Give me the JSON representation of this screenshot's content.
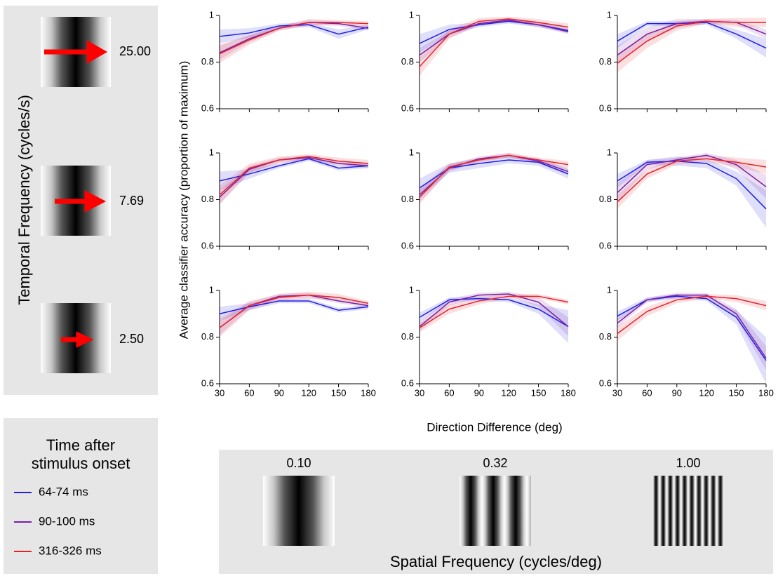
{
  "figure": {
    "y_label": "Average classifier accuracy  (proportion of maximum)",
    "x_label": "Direction Difference (deg)",
    "legend_title": [
      "Time after",
      "stimulus onset"
    ],
    "temporal_frequency": {
      "label": "Temporal Frequency (cycles/s)",
      "values": [
        "25.00",
        "7.69",
        "2.50"
      ]
    },
    "spatial_frequency": {
      "label": "Spatial Frequency (cycles/deg)",
      "values": [
        "0.10",
        "0.32",
        "1.00"
      ]
    }
  },
  "chart_data": [
    {
      "type": "line",
      "x": [
        30,
        60,
        90,
        120,
        150,
        180
      ],
      "xlim": [
        30,
        180
      ],
      "ylim": [
        0.6,
        1
      ],
      "xticks": [
        30,
        60,
        90,
        120,
        150,
        180
      ],
      "yticks": [
        0.6,
        0.8,
        1
      ],
      "xtick_labels": false,
      "series": [
        {
          "name": "64-74 ms",
          "color": "#1f1fe6",
          "values": [
            0.91,
            0.925,
            0.955,
            0.96,
            0.92,
            0.95
          ],
          "errors": [
            0.03,
            0.02,
            0.01,
            0.01,
            0.02,
            0.01
          ]
        },
        {
          "name": "90-100 ms",
          "color": "#7b1fa0",
          "values": [
            0.84,
            0.9,
            0.945,
            0.97,
            0.965,
            0.945
          ],
          "errors": [
            0.03,
            0.015,
            0.01,
            0.01,
            0.01,
            0.01
          ]
        },
        {
          "name": "316-326 ms",
          "color": "#e8202a",
          "values": [
            0.835,
            0.895,
            0.945,
            0.97,
            0.97,
            0.965
          ],
          "errors": [
            0.04,
            0.02,
            0.01,
            0.015,
            0.01,
            0.01
          ]
        }
      ]
    },
    {
      "type": "line",
      "x": [
        30,
        60,
        90,
        120,
        150,
        180
      ],
      "xlim": [
        30,
        180
      ],
      "ylim": [
        0.6,
        1
      ],
      "xticks": [
        30,
        60,
        90,
        120,
        150,
        180
      ],
      "yticks": [
        0.6,
        0.8,
        1
      ],
      "xtick_labels": false,
      "series": [
        {
          "color": "#1f1fe6",
          "values": [
            0.88,
            0.94,
            0.96,
            0.975,
            0.96,
            0.935
          ],
          "errors": [
            0.04,
            0.02,
            0.01,
            0.01,
            0.01,
            0.01
          ]
        },
        {
          "color": "#7b1fa0",
          "values": [
            0.83,
            0.92,
            0.965,
            0.98,
            0.96,
            0.93
          ],
          "errors": [
            0.03,
            0.015,
            0.01,
            0.01,
            0.01,
            0.01
          ]
        },
        {
          "color": "#e8202a",
          "values": [
            0.78,
            0.92,
            0.975,
            0.985,
            0.97,
            0.95
          ],
          "errors": [
            0.04,
            0.02,
            0.015,
            0.01,
            0.015,
            0.015
          ]
        }
      ]
    },
    {
      "type": "line",
      "x": [
        30,
        60,
        90,
        120,
        150,
        180
      ],
      "xlim": [
        30,
        180
      ],
      "ylim": [
        0.6,
        1
      ],
      "xticks": [
        30,
        60,
        90,
        120,
        150,
        180
      ],
      "yticks": [
        0.6,
        0.8,
        1
      ],
      "xtick_labels": false,
      "series": [
        {
          "color": "#1f1fe6",
          "values": [
            0.89,
            0.965,
            0.965,
            0.97,
            0.92,
            0.86
          ],
          "errors": [
            0.03,
            0.01,
            0.01,
            0.01,
            0.02,
            0.04
          ]
        },
        {
          "color": "#7b1fa0",
          "values": [
            0.83,
            0.92,
            0.965,
            0.975,
            0.97,
            0.92
          ],
          "errors": [
            0.04,
            0.03,
            0.02,
            0.01,
            0.01,
            0.02
          ]
        },
        {
          "color": "#e8202a",
          "values": [
            0.795,
            0.89,
            0.955,
            0.975,
            0.97,
            0.97
          ],
          "errors": [
            0.04,
            0.03,
            0.02,
            0.01,
            0.02,
            0.02
          ]
        }
      ]
    },
    {
      "type": "line",
      "x": [
        30,
        60,
        90,
        120,
        150,
        180
      ],
      "xlim": [
        30,
        180
      ],
      "ylim": [
        0.6,
        1
      ],
      "xticks": [
        30,
        60,
        90,
        120,
        150,
        180
      ],
      "yticks": [
        0.6,
        0.8,
        1
      ],
      "xtick_labels": false,
      "series": [
        {
          "color": "#1f1fe6",
          "values": [
            0.88,
            0.91,
            0.945,
            0.975,
            0.935,
            0.945
          ],
          "errors": [
            0.04,
            0.02,
            0.01,
            0.01,
            0.01,
            0.01
          ]
        },
        {
          "color": "#7b1fa0",
          "values": [
            0.81,
            0.93,
            0.97,
            0.98,
            0.955,
            0.945
          ],
          "errors": [
            0.03,
            0.015,
            0.01,
            0.01,
            0.01,
            0.01
          ]
        },
        {
          "color": "#e8202a",
          "values": [
            0.82,
            0.935,
            0.97,
            0.985,
            0.965,
            0.955
          ],
          "errors": [
            0.04,
            0.02,
            0.015,
            0.01,
            0.015,
            0.015
          ]
        }
      ]
    },
    {
      "type": "line",
      "x": [
        30,
        60,
        90,
        120,
        150,
        180
      ],
      "xlim": [
        30,
        180
      ],
      "ylim": [
        0.6,
        1
      ],
      "xticks": [
        30,
        60,
        90,
        120,
        150,
        180
      ],
      "yticks": [
        0.6,
        0.8,
        1
      ],
      "xtick_labels": false,
      "series": [
        {
          "color": "#1f1fe6",
          "values": [
            0.85,
            0.935,
            0.955,
            0.97,
            0.96,
            0.91
          ],
          "errors": [
            0.04,
            0.02,
            0.02,
            0.015,
            0.015,
            0.02
          ]
        },
        {
          "color": "#7b1fa0",
          "values": [
            0.82,
            0.935,
            0.975,
            0.99,
            0.965,
            0.92
          ],
          "errors": [
            0.03,
            0.015,
            0.01,
            0.01,
            0.01,
            0.015
          ]
        },
        {
          "color": "#e8202a",
          "values": [
            0.81,
            0.94,
            0.97,
            0.99,
            0.97,
            0.95
          ],
          "errors": [
            0.03,
            0.015,
            0.01,
            0.01,
            0.01,
            0.015
          ]
        }
      ]
    },
    {
      "type": "line",
      "x": [
        30,
        60,
        90,
        120,
        150,
        180
      ],
      "xlim": [
        30,
        180
      ],
      "ylim": [
        0.6,
        1
      ],
      "xticks": [
        30,
        60,
        90,
        120,
        150,
        180
      ],
      "yticks": [
        0.6,
        0.8,
        1
      ],
      "xtick_labels": false,
      "series": [
        {
          "color": "#1f1fe6",
          "values": [
            0.88,
            0.96,
            0.965,
            0.955,
            0.89,
            0.76
          ],
          "errors": [
            0.03,
            0.01,
            0.02,
            0.02,
            0.03,
            0.08
          ]
        },
        {
          "color": "#7b1fa0",
          "values": [
            0.83,
            0.95,
            0.97,
            0.99,
            0.95,
            0.855
          ],
          "errors": [
            0.04,
            0.02,
            0.01,
            0.01,
            0.02,
            0.05
          ]
        },
        {
          "color": "#e8202a",
          "values": [
            0.79,
            0.91,
            0.965,
            0.975,
            0.96,
            0.94
          ],
          "errors": [
            0.03,
            0.02,
            0.015,
            0.015,
            0.02,
            0.03
          ]
        }
      ]
    },
    {
      "type": "line",
      "x": [
        30,
        60,
        90,
        120,
        150,
        180
      ],
      "xlim": [
        30,
        180
      ],
      "ylim": [
        0.6,
        1
      ],
      "xticks": [
        30,
        60,
        90,
        120,
        150,
        180
      ],
      "yticks": [
        0.6,
        0.8,
        1
      ],
      "series": [
        {
          "color": "#1f1fe6",
          "values": [
            0.9,
            0.93,
            0.955,
            0.955,
            0.915,
            0.93
          ],
          "errors": [
            0.03,
            0.015,
            0.01,
            0.01,
            0.01,
            0.01
          ]
        },
        {
          "color": "#7b1fa0",
          "values": [
            0.84,
            0.935,
            0.975,
            0.98,
            0.955,
            0.935
          ],
          "errors": [
            0.03,
            0.015,
            0.01,
            0.01,
            0.01,
            0.01
          ]
        },
        {
          "color": "#e8202a",
          "values": [
            0.84,
            0.935,
            0.97,
            0.98,
            0.97,
            0.945
          ],
          "errors": [
            0.04,
            0.02,
            0.015,
            0.015,
            0.015,
            0.01
          ]
        }
      ]
    },
    {
      "type": "line",
      "x": [
        30,
        60,
        90,
        120,
        150,
        180
      ],
      "xlim": [
        30,
        180
      ],
      "ylim": [
        0.6,
        1
      ],
      "xticks": [
        30,
        60,
        90,
        120,
        150,
        180
      ],
      "yticks": [
        0.6,
        0.8,
        1
      ],
      "series": [
        {
          "color": "#1f1fe6",
          "values": [
            0.885,
            0.96,
            0.965,
            0.96,
            0.92,
            0.845
          ],
          "errors": [
            0.02,
            0.01,
            0.01,
            0.01,
            0.02,
            0.07
          ]
        },
        {
          "color": "#7b1fa0",
          "values": [
            0.845,
            0.95,
            0.98,
            0.985,
            0.95,
            0.845
          ],
          "errors": [
            0.02,
            0.015,
            0.01,
            0.01,
            0.02,
            0.04
          ]
        },
        {
          "color": "#e8202a",
          "values": [
            0.84,
            0.92,
            0.955,
            0.975,
            0.975,
            0.95
          ],
          "errors": [
            0.02,
            0.02,
            0.015,
            0.01,
            0.01,
            0.01
          ]
        }
      ]
    },
    {
      "type": "line",
      "x": [
        30,
        60,
        90,
        120,
        150,
        180
      ],
      "xlim": [
        30,
        180
      ],
      "ylim": [
        0.6,
        1
      ],
      "xticks": [
        30,
        60,
        90,
        120,
        150,
        180
      ],
      "yticks": [
        0.6,
        0.8,
        1
      ],
      "series": [
        {
          "color": "#1f1fe6",
          "values": [
            0.89,
            0.96,
            0.975,
            0.965,
            0.885,
            0.7
          ],
          "errors": [
            0.02,
            0.01,
            0.01,
            0.01,
            0.03,
            0.1
          ]
        },
        {
          "color": "#7b1fa0",
          "values": [
            0.86,
            0.96,
            0.98,
            0.98,
            0.9,
            0.71
          ],
          "errors": [
            0.02,
            0.01,
            0.01,
            0.01,
            0.02,
            0.05
          ]
        },
        {
          "color": "#e8202a",
          "values": [
            0.815,
            0.91,
            0.96,
            0.975,
            0.965,
            0.935
          ],
          "errors": [
            0.03,
            0.02,
            0.015,
            0.01,
            0.015,
            0.02
          ]
        }
      ]
    }
  ]
}
